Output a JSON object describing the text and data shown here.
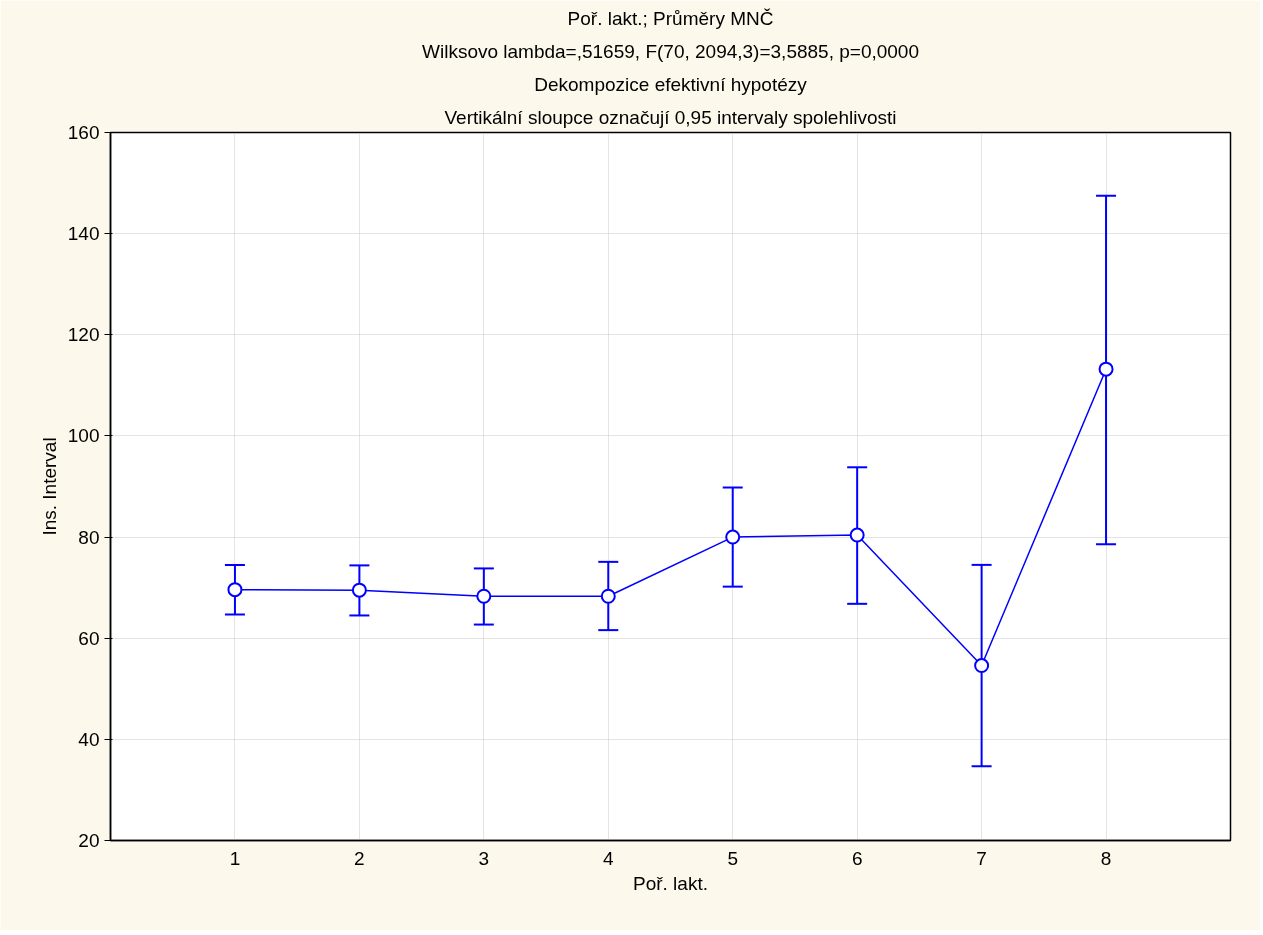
{
  "chart_data": {
    "type": "line",
    "title": "Poř. lakt.; Průměry MNČ",
    "subtitle": "Wilksovo lambda=,51659, F(70, 2094,3)=3,5885, p=0,0000",
    "annotations": [
      "Dekompozice efektivní hypotézy",
      "Vertikální sloupce označují 0,95 intervaly spolehlivosti"
    ],
    "xlabel": "Poř. lakt.",
    "ylabel": "Ins. Interval",
    "x": [
      1,
      2,
      3,
      4,
      5,
      6,
      7,
      8
    ],
    "series": [
      {
        "color": "#0000ff",
        "values": [
          69.6,
          69.5,
          68.3,
          68.3,
          80.0,
          80.4,
          54.6,
          113.2
        ],
        "errors": [
          [
            64.7,
            74.5
          ],
          [
            64.5,
            74.4
          ],
          [
            62.7,
            73.8
          ],
          [
            61.6,
            75.1
          ],
          [
            70.2,
            89.8
          ],
          [
            66.8,
            93.8
          ],
          [
            34.7,
            74.5
          ],
          [
            78.6,
            147.5
          ]
        ]
      }
    ],
    "xlim": [
      0,
      9
    ],
    "ylim": [
      20,
      160
    ],
    "xticks": [
      1,
      2,
      3,
      4,
      5,
      6,
      7,
      8
    ],
    "yticks": [
      20,
      40,
      60,
      80,
      100,
      120,
      140,
      160
    ],
    "grid": true,
    "marker": "circle",
    "line_style": "solid"
  }
}
